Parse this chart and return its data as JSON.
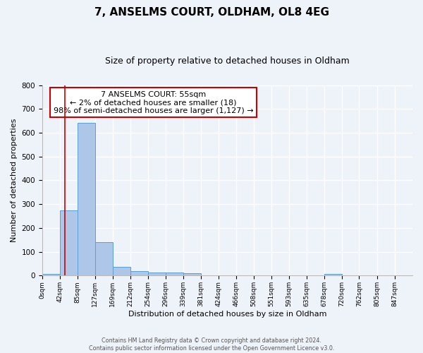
{
  "title": "7, ANSELMS COURT, OLDHAM, OL8 4EG",
  "subtitle": "Size of property relative to detached houses in Oldham",
  "xlabel": "Distribution of detached houses by size in Oldham",
  "ylabel": "Number of detached properties",
  "bin_labels": [
    "0sqm",
    "42sqm",
    "85sqm",
    "127sqm",
    "169sqm",
    "212sqm",
    "254sqm",
    "296sqm",
    "339sqm",
    "381sqm",
    "424sqm",
    "466sqm",
    "508sqm",
    "551sqm",
    "593sqm",
    "635sqm",
    "678sqm",
    "720sqm",
    "762sqm",
    "805sqm",
    "847sqm"
  ],
  "bar_values": [
    8,
    275,
    643,
    140,
    38,
    20,
    12,
    12,
    10,
    0,
    0,
    0,
    0,
    0,
    0,
    0,
    8,
    0,
    0,
    0,
    0
  ],
  "bar_color": "#aec6e8",
  "bar_edge_color": "#5a9fd4",
  "vline_x": 55,
  "vline_color": "#cc0000",
  "ylim": [
    0,
    800
  ],
  "yticks": [
    0,
    100,
    200,
    300,
    400,
    500,
    600,
    700,
    800
  ],
  "annotation_title": "7 ANSELMS COURT: 55sqm",
  "annotation_line1": "← 2% of detached houses are smaller (18)",
  "annotation_line2": "98% of semi-detached houses are larger (1,127) →",
  "annotation_box_color": "#ffffff",
  "annotation_box_edge": "#cc0000",
  "footer1": "Contains HM Land Registry data © Crown copyright and database right 2024.",
  "footer2": "Contains public sector information licensed under the Open Government Licence v3.0.",
  "bg_color": "#eef2f9",
  "grid_color": "#ffffff",
  "title_fontsize": 11,
  "subtitle_fontsize": 9,
  "bin_edges": [
    0,
    42,
    85,
    127,
    169,
    212,
    254,
    296,
    339,
    381,
    424,
    466,
    508,
    551,
    593,
    635,
    678,
    720,
    762,
    805,
    847,
    890
  ]
}
